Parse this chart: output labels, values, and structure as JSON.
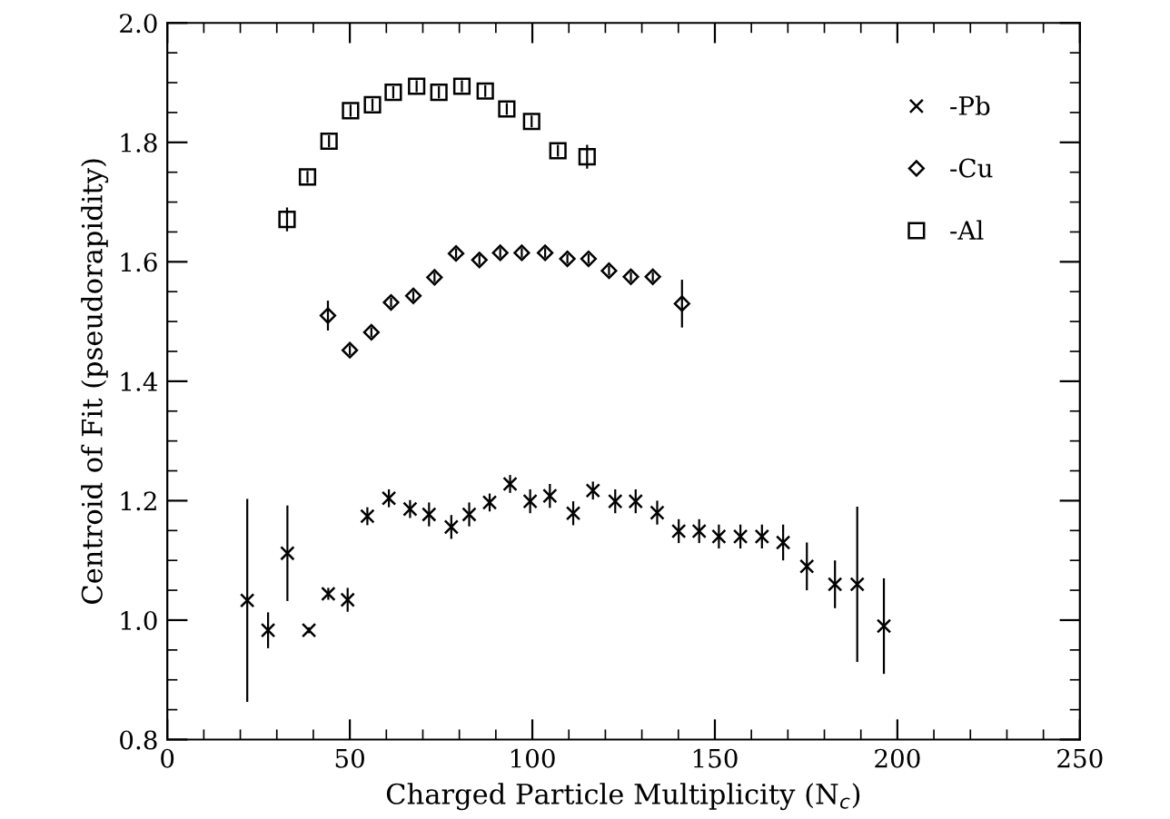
{
  "chart_data": {
    "type": "scatter",
    "xlabel": "Charged Particle Multiplicity (N$_{c}$)",
    "ylabel": "Centroid of Fit (pseudorapidity)",
    "xlim": [
      0,
      250
    ],
    "xticks": [
      0,
      50,
      100,
      150,
      200,
      250
    ],
    "ylim": [
      0.8,
      2.0
    ],
    "yticks": [
      {
        "value": 0.8,
        "label": "0.8"
      },
      {
        "value": 1.0,
        "label": "1.0"
      },
      {
        "value": 1.2,
        "label": "1.2"
      },
      {
        "value": 1.4,
        "label": "1.4"
      },
      {
        "value": 1.6,
        "label": "1.6"
      },
      {
        "value": 1.8,
        "label": "1.8"
      },
      {
        "value": 2.0,
        "label": "2.0"
      }
    ],
    "grid": false,
    "legend": "top right",
    "series": [
      {
        "name": "-Pb",
        "color": "#000000",
        "marker": "cross",
        "x": [
          21.9,
          27.6,
          32.9,
          38.8,
          44.1,
          49.4,
          54.8,
          60.7,
          66.5,
          71.7,
          77.8,
          82.7,
          88.3,
          93.9,
          99.4,
          104.8,
          111.2,
          116.6,
          122.7,
          128.3,
          134.2,
          140.1,
          145.7,
          151.1,
          157,
          162.9,
          168.7,
          175.2,
          182.9,
          189,
          196.3
        ],
        "values": [
          1.033,
          0.983,
          1.112,
          0.983,
          1.044,
          1.034,
          1.174,
          1.204,
          1.186,
          1.177,
          1.156,
          1.177,
          1.197,
          1.228,
          1.199,
          1.208,
          1.179,
          1.217,
          1.199,
          1.199,
          1.18,
          1.149,
          1.149,
          1.14,
          1.14,
          1.14,
          1.13,
          1.09,
          1.06,
          1.06,
          0.99
        ],
        "errors": [
          0.17,
          0.03,
          0.08,
          0.005,
          0.01,
          0.02,
          0.015,
          0.015,
          0.015,
          0.02,
          0.02,
          0.02,
          0.015,
          0.015,
          0.02,
          0.02,
          0.02,
          0.015,
          0.02,
          0.02,
          0.02,
          0.02,
          0.02,
          0.02,
          0.02,
          0.02,
          0.03,
          0.04,
          0.04,
          0.13,
          0.08
        ]
      },
      {
        "name": "-Cu",
        "color": "#000000",
        "marker": "diamond",
        "x": [
          44,
          50,
          55.9,
          61.3,
          67.4,
          73.2,
          79.1,
          85.5,
          91.2,
          97.1,
          103.5,
          109.6,
          115.4,
          121,
          127,
          133,
          141
        ],
        "values": [
          1.51,
          1.452,
          1.482,
          1.532,
          1.543,
          1.574,
          1.614,
          1.603,
          1.615,
          1.615,
          1.615,
          1.605,
          1.605,
          1.585,
          1.575,
          1.575,
          1.53
        ],
        "errors": [
          0.025,
          0.008,
          0.008,
          0.008,
          0.008,
          0.008,
          0.008,
          0.008,
          0.008,
          0.008,
          0.008,
          0.008,
          0.008,
          0.008,
          0.008,
          0.008,
          0.04
        ]
      },
      {
        "name": "-Al",
        "color": "#000000",
        "marker": "square",
        "x": [
          32.8,
          38.4,
          44.3,
          50.2,
          56.2,
          61.9,
          68.3,
          74.4,
          80.7,
          87.1,
          93,
          99.8,
          107,
          115
        ],
        "values": [
          1.671,
          1.742,
          1.802,
          1.853,
          1.863,
          1.884,
          1.894,
          1.884,
          1.894,
          1.886,
          1.856,
          1.835,
          1.786,
          1.776
        ],
        "errors": [
          0.02,
          0.01,
          0.01,
          0.01,
          0.01,
          0.01,
          0.01,
          0.01,
          0.01,
          0.01,
          0.01,
          0.01,
          0.01,
          0.02
        ]
      }
    ]
  }
}
